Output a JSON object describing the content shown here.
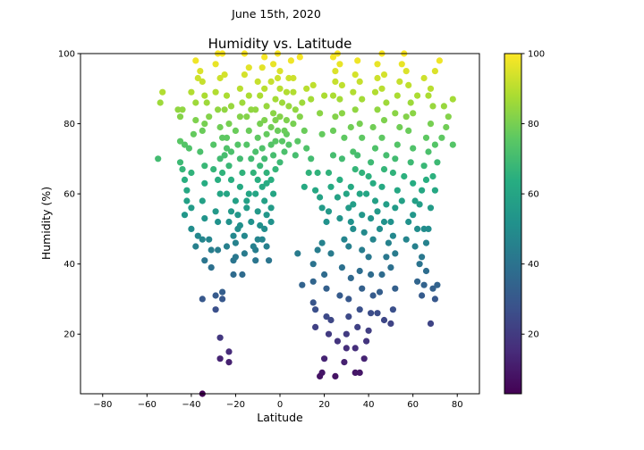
{
  "figure": {
    "suptitle": "June 15th, 2020"
  },
  "chart_data": {
    "type": "scatter",
    "title": "Humidity vs. Latitude",
    "xlabel": "Latitude",
    "ylabel": "Humidity (%)",
    "xlim": [
      -90,
      90
    ],
    "ylim": [
      3,
      100
    ],
    "xticks": [
      -80,
      -60,
      -40,
      -20,
      0,
      20,
      40,
      60,
      80
    ],
    "yticks": [
      20,
      40,
      60,
      80,
      100
    ],
    "grid": false,
    "colormap": "viridis",
    "colorbar": {
      "min": 3,
      "max": 100,
      "ticks": [
        20,
        40,
        60,
        80,
        100
      ]
    },
    "points": [
      [
        -54,
        86
      ],
      [
        -53,
        89
      ],
      [
        -55,
        70
      ],
      [
        -45,
        69
      ],
      [
        -44,
        67
      ],
      [
        -45,
        75
      ],
      [
        -46,
        84
      ],
      [
        -44,
        84
      ],
      [
        -45,
        82
      ],
      [
        -43,
        74
      ],
      [
        -43,
        64
      ],
      [
        -42,
        61
      ],
      [
        -42,
        58
      ],
      [
        -43,
        54
      ],
      [
        -40,
        56
      ],
      [
        -40,
        50
      ],
      [
        -38,
        45
      ],
      [
        -37,
        48
      ],
      [
        -40,
        66
      ],
      [
        -41,
        73
      ],
      [
        -39,
        77
      ],
      [
        -38,
        81
      ],
      [
        -40,
        89
      ],
      [
        -37,
        93
      ],
      [
        -38,
        98
      ],
      [
        -36,
        95
      ],
      [
        -35,
        92
      ],
      [
        -34,
        88
      ],
      [
        -33,
        86
      ],
      [
        -34,
        80
      ],
      [
        -35,
        78
      ],
      [
        -36,
        72
      ],
      [
        -34,
        68
      ],
      [
        -34,
        63
      ],
      [
        -35,
        58
      ],
      [
        -34,
        53
      ],
      [
        -35,
        47
      ],
      [
        -34,
        41
      ],
      [
        -35,
        30
      ],
      [
        -35,
        3
      ],
      [
        -32,
        47
      ],
      [
        -31,
        39
      ],
      [
        -29,
        31
      ],
      [
        -29,
        27
      ],
      [
        -28,
        44
      ],
      [
        -28,
        52
      ],
      [
        -29,
        55
      ],
      [
        -27,
        60
      ],
      [
        -28,
        64
      ],
      [
        -30,
        67
      ],
      [
        -27,
        70
      ],
      [
        -26,
        76
      ],
      [
        -27,
        79
      ],
      [
        -28,
        84
      ],
      [
        -29,
        89
      ],
      [
        -27,
        93
      ],
      [
        -29,
        97
      ],
      [
        -28,
        100
      ],
      [
        -26,
        100
      ],
      [
        -25,
        94
      ],
      [
        -24,
        88
      ],
      [
        -25,
        84
      ],
      [
        -23,
        80
      ],
      [
        -24,
        73
      ],
      [
        -22,
        72
      ],
      [
        -23,
        68
      ],
      [
        -22,
        64
      ],
      [
        -24,
        60
      ],
      [
        -22,
        55
      ],
      [
        -23,
        52
      ],
      [
        -24,
        45
      ],
      [
        -26,
        32
      ],
      [
        -26,
        30
      ],
      [
        -27,
        19
      ],
      [
        -27,
        13
      ],
      [
        -23,
        15
      ],
      [
        -23,
        12
      ],
      [
        -21,
        41
      ],
      [
        -21,
        37
      ],
      [
        -20,
        42
      ],
      [
        -21,
        48
      ],
      [
        -19,
        50
      ],
      [
        -19,
        54
      ],
      [
        -20,
        58
      ],
      [
        -18,
        62
      ],
      [
        -17,
        66
      ],
      [
        -18,
        70
      ],
      [
        -19,
        74
      ],
      [
        -20,
        78
      ],
      [
        -18,
        82
      ],
      [
        -17,
        86
      ],
      [
        -18,
        90
      ],
      [
        -16,
        94
      ],
      [
        -16,
        100
      ],
      [
        -14,
        96
      ],
      [
        -14,
        88
      ],
      [
        -13,
        84
      ],
      [
        -14,
        78
      ],
      [
        -15,
        74
      ],
      [
        -13,
        70
      ],
      [
        -12,
        66
      ],
      [
        -14,
        60
      ],
      [
        -15,
        56
      ],
      [
        -13,
        52
      ],
      [
        -16,
        48
      ],
      [
        -16,
        43
      ],
      [
        -17,
        37
      ],
      [
        -11,
        44
      ],
      [
        -11,
        41
      ],
      [
        -10,
        47
      ],
      [
        -9,
        51
      ],
      [
        -10,
        55
      ],
      [
        -11,
        60
      ],
      [
        -10,
        64
      ],
      [
        -9,
        68
      ],
      [
        -11,
        72
      ],
      [
        -10,
        76
      ],
      [
        -9,
        80
      ],
      [
        -11,
        84
      ],
      [
        -9,
        88
      ],
      [
        -10,
        92
      ],
      [
        -8,
        96
      ],
      [
        -7,
        99
      ],
      [
        -7,
        90
      ],
      [
        -6,
        85
      ],
      [
        -7,
        81
      ],
      [
        -6,
        77
      ],
      [
        -8,
        73
      ],
      [
        -7,
        70
      ],
      [
        -6,
        66
      ],
      [
        -8,
        62
      ],
      [
        -7,
        58
      ],
      [
        -6,
        54
      ],
      [
        -7,
        50
      ],
      [
        -6,
        45
      ],
      [
        -5,
        41
      ],
      [
        -4,
        52
      ],
      [
        -4,
        56
      ],
      [
        -3,
        60
      ],
      [
        -4,
        64
      ],
      [
        -2,
        67
      ],
      [
        -3,
        71
      ],
      [
        -2,
        75
      ],
      [
        -4,
        79
      ],
      [
        -3,
        83
      ],
      [
        -2,
        87
      ],
      [
        -4,
        92
      ],
      [
        -3,
        97
      ],
      [
        -1,
        100
      ],
      [
        0,
        95
      ],
      [
        0,
        90
      ],
      [
        1,
        86
      ],
      [
        0,
        82
      ],
      [
        -1,
        78
      ],
      [
        1,
        75
      ],
      [
        2,
        72
      ],
      [
        0,
        69
      ],
      [
        3,
        77
      ],
      [
        3,
        81
      ],
      [
        4,
        85
      ],
      [
        3,
        89
      ],
      [
        4,
        93
      ],
      [
        5,
        98
      ],
      [
        6,
        93
      ],
      [
        6,
        89
      ],
      [
        7,
        84
      ],
      [
        6,
        80
      ],
      [
        8,
        75
      ],
      [
        7,
        71
      ],
      [
        9,
        99
      ],
      [
        9,
        82
      ],
      [
        10,
        86
      ],
      [
        11,
        78
      ],
      [
        12,
        73
      ],
      [
        12,
        90
      ],
      [
        8,
        43
      ],
      [
        10,
        34
      ],
      [
        11,
        62
      ],
      [
        13,
        66
      ],
      [
        14,
        70
      ],
      [
        14,
        87
      ],
      [
        15,
        91
      ],
      [
        15,
        35
      ],
      [
        15,
        29
      ],
      [
        16,
        27
      ],
      [
        16,
        22
      ],
      [
        15,
        40
      ],
      [
        17,
        44
      ],
      [
        18,
        59
      ],
      [
        16,
        61
      ],
      [
        17,
        66
      ],
      [
        19,
        77
      ],
      [
        18,
        83
      ],
      [
        20,
        88
      ],
      [
        19,
        46
      ],
      [
        20,
        37
      ],
      [
        21,
        33
      ],
      [
        21,
        25
      ],
      [
        20,
        13
      ],
      [
        19,
        9
      ],
      [
        18,
        8
      ],
      [
        22,
        20
      ],
      [
        23,
        24
      ],
      [
        23,
        43
      ],
      [
        22,
        55
      ],
      [
        23,
        62
      ],
      [
        22,
        66
      ],
      [
        24,
        71
      ],
      [
        24,
        78
      ],
      [
        25,
        82
      ],
      [
        24,
        88
      ],
      [
        25,
        92
      ],
      [
        25,
        95
      ],
      [
        24,
        99
      ],
      [
        26,
        100
      ],
      [
        27,
        97
      ],
      [
        28,
        91
      ],
      [
        27,
        87
      ],
      [
        28,
        83
      ],
      [
        29,
        76
      ],
      [
        28,
        70
      ],
      [
        27,
        64
      ],
      [
        26,
        59
      ],
      [
        27,
        53
      ],
      [
        29,
        47
      ],
      [
        28,
        39
      ],
      [
        27,
        31
      ],
      [
        26,
        18
      ],
      [
        25,
        8
      ],
      [
        29,
        12
      ],
      [
        30,
        16
      ],
      [
        30,
        20
      ],
      [
        31,
        25
      ],
      [
        31,
        30
      ],
      [
        32,
        36
      ],
      [
        31,
        45
      ],
      [
        32,
        52
      ],
      [
        33,
        57
      ],
      [
        32,
        62
      ],
      [
        34,
        67
      ],
      [
        33,
        72
      ],
      [
        32,
        79
      ],
      [
        34,
        84
      ],
      [
        33,
        89
      ],
      [
        34,
        94
      ],
      [
        35,
        98
      ],
      [
        36,
        92
      ],
      [
        37,
        87
      ],
      [
        36,
        80
      ],
      [
        37,
        76
      ],
      [
        35,
        71
      ],
      [
        37,
        66
      ],
      [
        36,
        60
      ],
      [
        37,
        54
      ],
      [
        38,
        49
      ],
      [
        37,
        44
      ],
      [
        36,
        38
      ],
      [
        37,
        33
      ],
      [
        36,
        27
      ],
      [
        35,
        22
      ],
      [
        34,
        16
      ],
      [
        34,
        9
      ],
      [
        36,
        9
      ],
      [
        38,
        13
      ],
      [
        39,
        18
      ],
      [
        40,
        21
      ],
      [
        41,
        26
      ],
      [
        42,
        31
      ],
      [
        41,
        37
      ],
      [
        40,
        42
      ],
      [
        42,
        47
      ],
      [
        41,
        53
      ],
      [
        43,
        58
      ],
      [
        42,
        63
      ],
      [
        41,
        69
      ],
      [
        43,
        73
      ],
      [
        42,
        79
      ],
      [
        44,
        84
      ],
      [
        43,
        89
      ],
      [
        44,
        93
      ],
      [
        44,
        97
      ],
      [
        46,
        100
      ],
      [
        47,
        94
      ],
      [
        46,
        90
      ],
      [
        48,
        86
      ],
      [
        47,
        81
      ],
      [
        46,
        76
      ],
      [
        48,
        71
      ],
      [
        47,
        67
      ],
      [
        46,
        62
      ],
      [
        48,
        57
      ],
      [
        47,
        52
      ],
      [
        49,
        46
      ],
      [
        48,
        42
      ],
      [
        46,
        37
      ],
      [
        45,
        32
      ],
      [
        44,
        26
      ],
      [
        47,
        24
      ],
      [
        50,
        23
      ],
      [
        51,
        27
      ],
      [
        52,
        33
      ],
      [
        50,
        39
      ],
      [
        52,
        43
      ],
      [
        51,
        48
      ],
      [
        50,
        52
      ],
      [
        52,
        56
      ],
      [
        53,
        61
      ],
      [
        51,
        66
      ],
      [
        52,
        70
      ],
      [
        53,
        74
      ],
      [
        54,
        79
      ],
      [
        52,
        83
      ],
      [
        53,
        88
      ],
      [
        54,
        92
      ],
      [
        55,
        97
      ],
      [
        56,
        100
      ],
      [
        57,
        95
      ],
      [
        58,
        91
      ],
      [
        59,
        86
      ],
      [
        57,
        82
      ],
      [
        58,
        78
      ],
      [
        60,
        73
      ],
      [
        59,
        69
      ],
      [
        60,
        63
      ],
      [
        61,
        58
      ],
      [
        60,
        54
      ],
      [
        62,
        50
      ],
      [
        61,
        45
      ],
      [
        63,
        40
      ],
      [
        62,
        35
      ],
      [
        64,
        31
      ],
      [
        65,
        34
      ],
      [
        66,
        38
      ],
      [
        64,
        42
      ],
      [
        66,
        46
      ],
      [
        65,
        50
      ],
      [
        63,
        57
      ],
      [
        64,
        61
      ],
      [
        66,
        64
      ],
      [
        65,
        68
      ],
      [
        67,
        72
      ],
      [
        66,
        76
      ],
      [
        68,
        80
      ],
      [
        69,
        85
      ],
      [
        68,
        90
      ],
      [
        70,
        95
      ],
      [
        72,
        98
      ],
      [
        70,
        74
      ],
      [
        71,
        69
      ],
      [
        69,
        65
      ],
      [
        70,
        61
      ],
      [
        68,
        56
      ],
      [
        67,
        50
      ],
      [
        69,
        33
      ],
      [
        70,
        30
      ],
      [
        68,
        23
      ],
      [
        71,
        34
      ],
      [
        74,
        85
      ],
      [
        76,
        82
      ],
      [
        78,
        87
      ],
      [
        78,
        74
      ],
      [
        75,
        79
      ],
      [
        73,
        76
      ],
      [
        67,
        88
      ],
      [
        65,
        93
      ],
      [
        62,
        88
      ],
      [
        60,
        83
      ],
      [
        56,
        65
      ],
      [
        55,
        58
      ],
      [
        58,
        52
      ],
      [
        57,
        47
      ],
      [
        45,
        50
      ],
      [
        44,
        55
      ],
      [
        39,
        60
      ],
      [
        40,
        65
      ],
      [
        30,
        60
      ],
      [
        31,
        56
      ],
      [
        33,
        50
      ],
      [
        21,
        52
      ],
      [
        19,
        56
      ],
      [
        -31,
        44
      ],
      [
        -26,
        66
      ],
      [
        -25,
        71
      ],
      [
        -24,
        76
      ],
      [
        -20,
        46
      ],
      [
        -18,
        51
      ],
      [
        -15,
        58
      ],
      [
        -12,
        45
      ],
      [
        -8,
        47
      ],
      [
        -6,
        63
      ],
      [
        -4,
        74
      ],
      [
        -2,
        81
      ],
      [
        2,
        78
      ],
      [
        4,
        74
      ],
      [
        -1,
        93
      ],
      [
        -15,
        82
      ],
      [
        -22,
        85
      ],
      [
        -30,
        74
      ],
      [
        -32,
        82
      ],
      [
        -38,
        86
      ]
    ]
  }
}
